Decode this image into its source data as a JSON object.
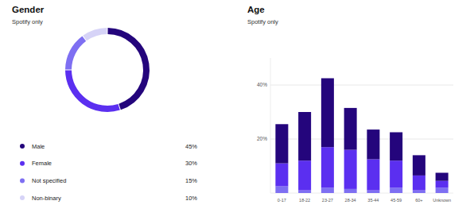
{
  "chart_data": [
    {
      "type": "pie",
      "title": "Gender",
      "subtitle": "Spotify only",
      "categories": [
        "Male",
        "Female",
        "Not specified",
        "Non-binary"
      ],
      "values": [
        45,
        30,
        15,
        10
      ],
      "value_labels": [
        "45%",
        "30%",
        "15%",
        "10%"
      ],
      "colors": [
        "#24057c",
        "#5b2ff0",
        "#7e6ff2",
        "#d6d3f7"
      ]
    },
    {
      "type": "bar",
      "title": "Age",
      "subtitle": "Spotify only",
      "categories": [
        "0-17",
        "18-22",
        "23-27",
        "28-34",
        "35-44",
        "45-59",
        "60+",
        "Unknown"
      ],
      "series": [
        {
          "color": "#7e6ff2",
          "values": [
            2.5,
            1,
            2,
            1.5,
            1,
            2,
            1,
            2
          ]
        },
        {
          "color": "#5b2ff0",
          "values": [
            8.5,
            11,
            15,
            14.5,
            11.5,
            10,
            5.5,
            2.5
          ]
        },
        {
          "color": "#24057c",
          "values": [
            14.5,
            18,
            25.5,
            15.5,
            11,
            10.5,
            7.5,
            3
          ]
        }
      ],
      "ylim": [
        0,
        50
      ],
      "yticks": [
        {
          "value": 20,
          "label": "20%"
        },
        {
          "value": 40,
          "label": "40%"
        }
      ],
      "grid": true,
      "stacked": true
    }
  ]
}
